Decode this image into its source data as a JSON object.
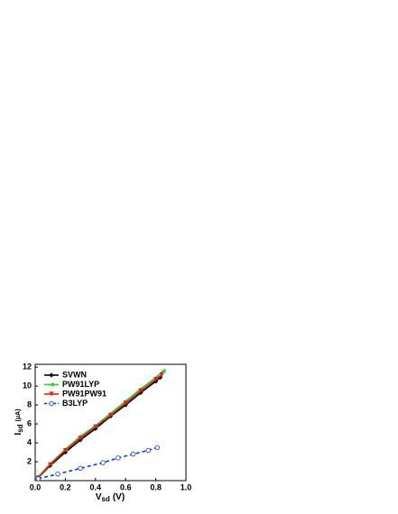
{
  "chart_data": {
    "type": "line",
    "x_label": {
      "main": "V",
      "sub": "sd",
      "unit": "(V)"
    },
    "y_label": {
      "main": "I",
      "sub": "sd",
      "unit": "(μA)"
    },
    "xlim": [
      0,
      1.0
    ],
    "ylim": [
      0,
      12.3
    ],
    "xticks": [
      {
        "value": 0,
        "label": "0.0"
      },
      0.2,
      0.4,
      0.6,
      0.8,
      {
        "value": 1,
        "label": "1.0"
      }
    ],
    "yticks": [
      2,
      4,
      6,
      8,
      10,
      12
    ],
    "legend": "upper left",
    "series": [
      {
        "name": "SVWN",
        "color": "#000000",
        "marker": "diamond",
        "dashed": false,
        "x": [
          0.02,
          0.1,
          0.2,
          0.3,
          0.4,
          0.5,
          0.6,
          0.7,
          0.8,
          0.83
        ],
        "values": [
          0.3,
          1.6,
          3.0,
          4.3,
          5.5,
          6.8,
          8.0,
          9.3,
          10.5,
          10.9
        ]
      },
      {
        "name": "PW91LYP",
        "color": "#33cc33",
        "marker": "triangle-left",
        "dashed": false,
        "x": [
          0.02,
          0.1,
          0.2,
          0.3,
          0.4,
          0.5,
          0.6,
          0.7,
          0.8,
          0.85
        ],
        "values": [
          0.4,
          1.8,
          3.3,
          4.7,
          5.8,
          7.1,
          8.4,
          9.7,
          10.9,
          11.6
        ]
      },
      {
        "name": "PW91PW91",
        "color": "#dd2222",
        "marker": "triangle-down",
        "dashed": false,
        "x": [
          0.02,
          0.1,
          0.2,
          0.3,
          0.4,
          0.5,
          0.6,
          0.7,
          0.8,
          0.84
        ],
        "values": [
          0.3,
          1.7,
          3.2,
          4.5,
          5.7,
          6.9,
          8.2,
          9.5,
          10.7,
          11.2
        ]
      },
      {
        "name": "B3LYP",
        "color": "#1133dd",
        "marker": "circle-open",
        "dashed": true,
        "x": [
          0.02,
          0.15,
          0.3,
          0.45,
          0.55,
          0.65,
          0.75,
          0.81
        ],
        "values": [
          0.2,
          0.7,
          1.3,
          1.9,
          2.4,
          2.8,
          3.2,
          3.5
        ]
      }
    ]
  }
}
